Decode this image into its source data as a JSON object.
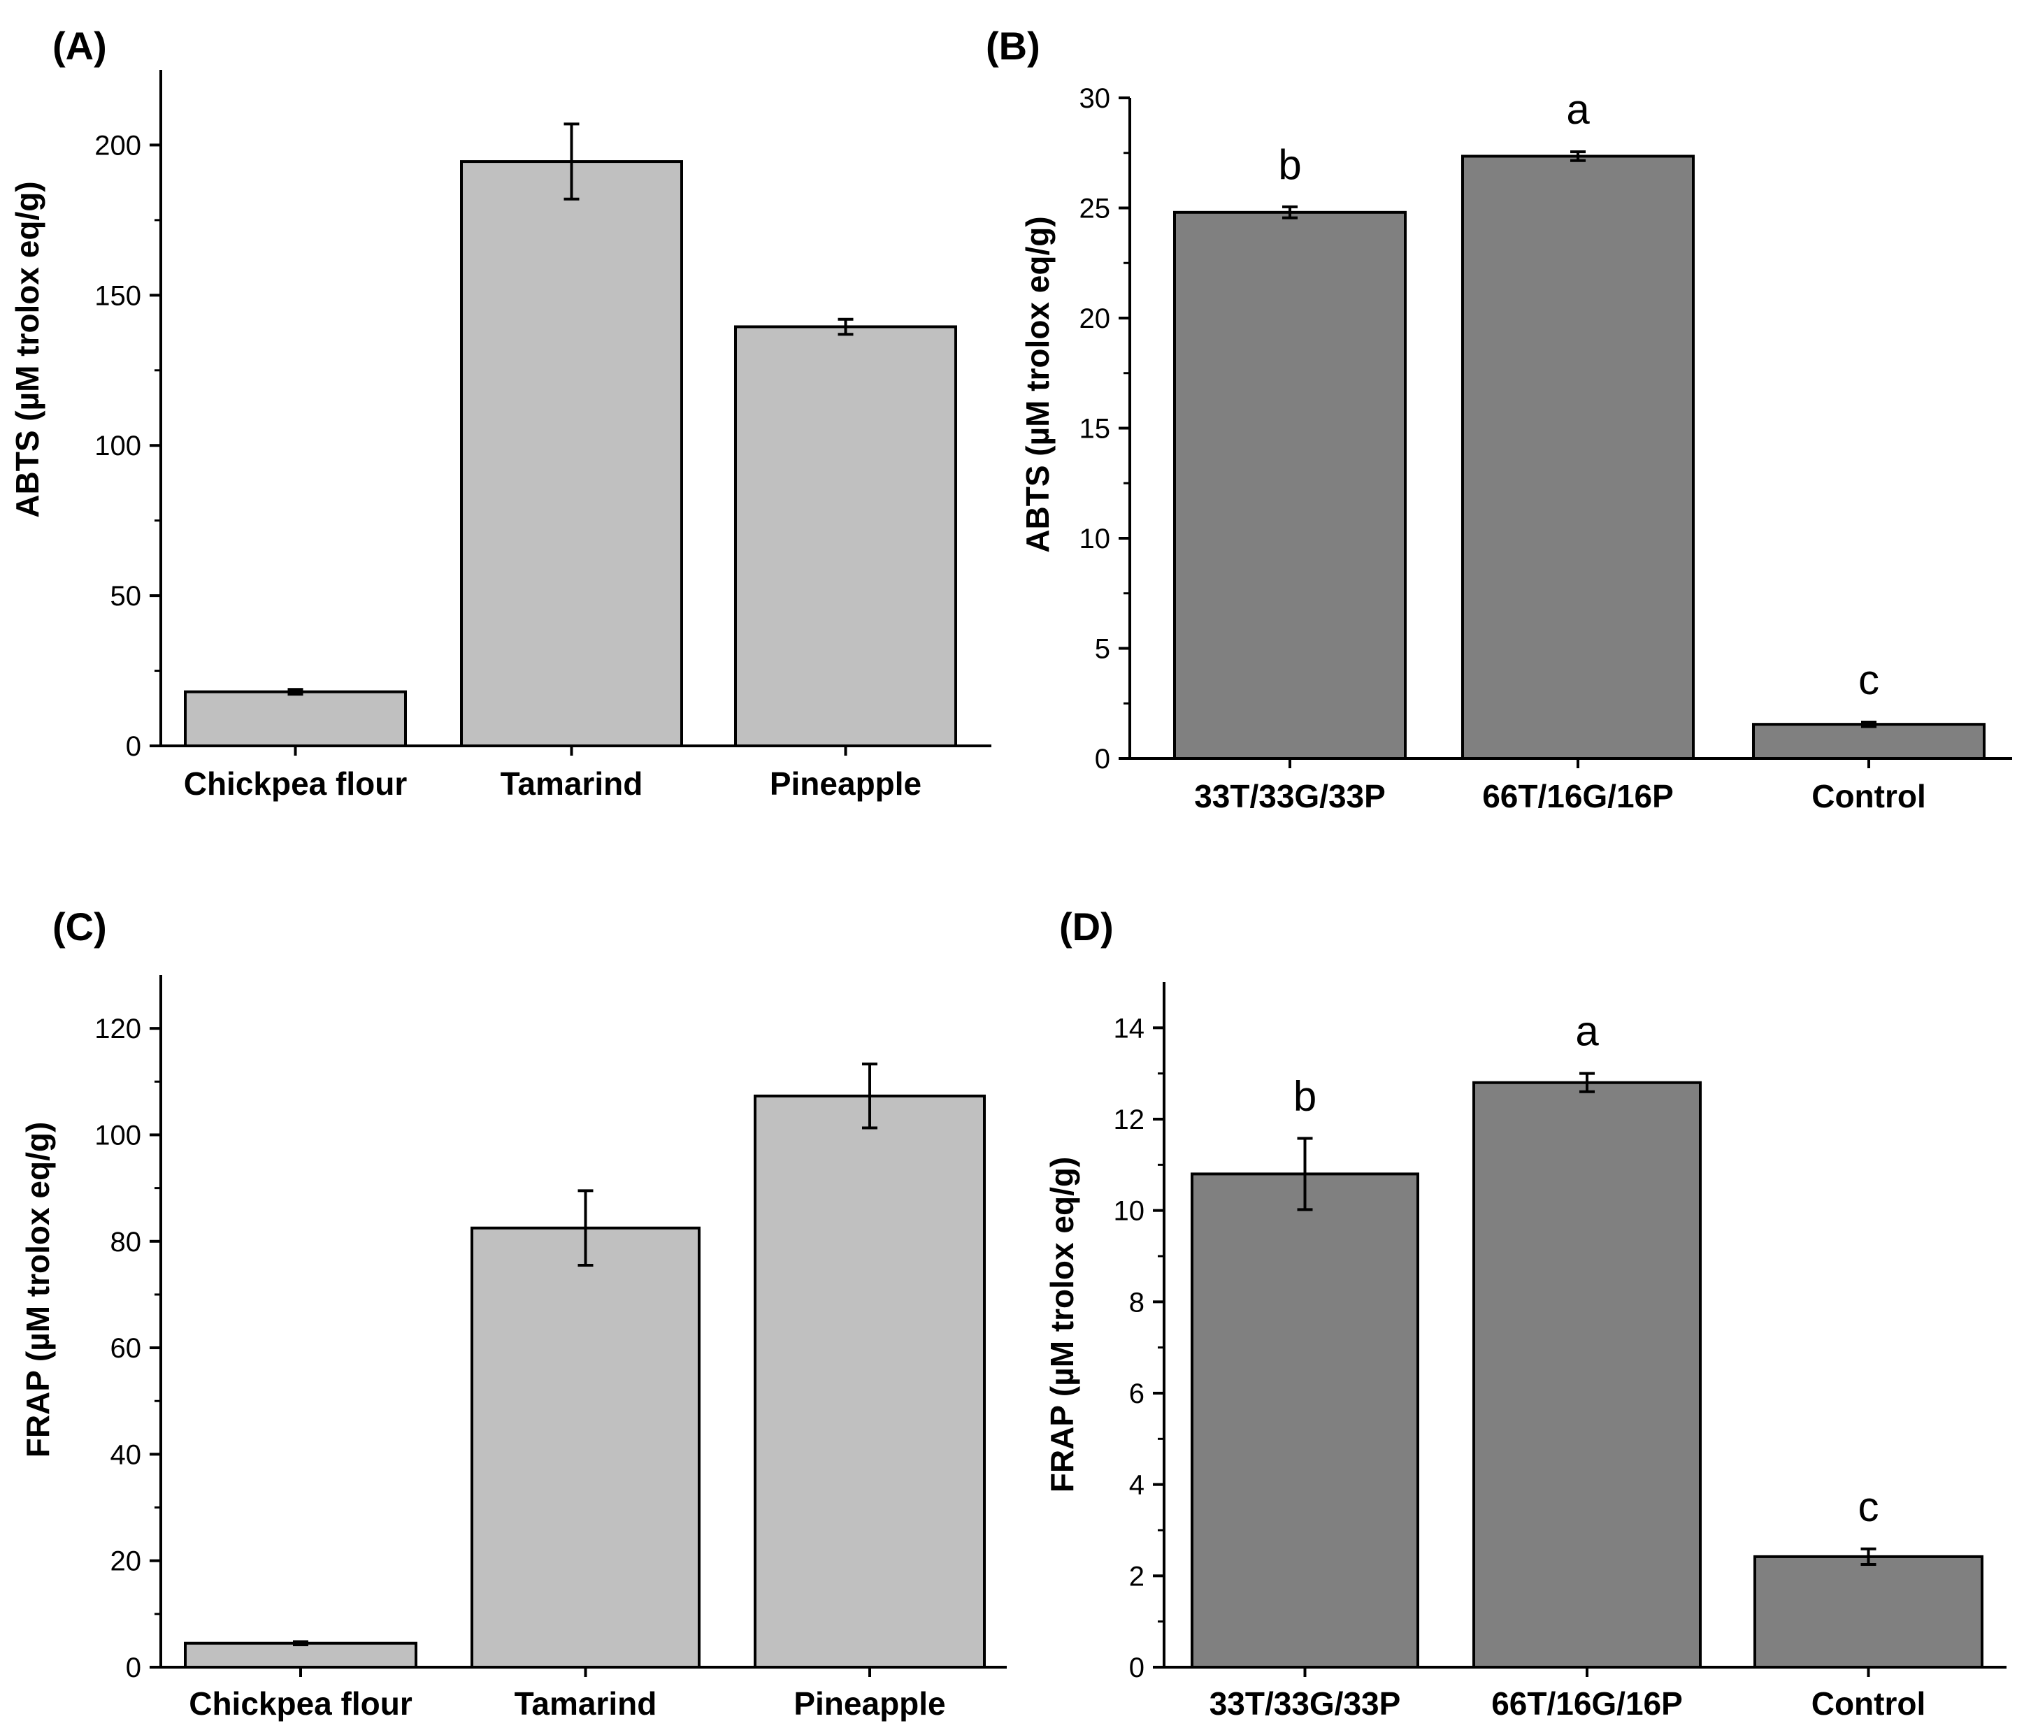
{
  "chart_data": [
    {
      "panel": "(A)",
      "type": "bar",
      "categories": [
        "Chickpea flour",
        "Tamarind",
        "Pineapple"
      ],
      "values": [
        18,
        194.5,
        139.5
      ],
      "errors": [
        0.8,
        12.5,
        2.5
      ],
      "ylabel": "ABTS (µM trolox eq/g)",
      "ylim": [
        0,
        225
      ],
      "yticks": [
        0,
        50,
        100,
        150,
        200
      ],
      "bar_color": "#c0c0c0",
      "significance": []
    },
    {
      "panel": "(B)",
      "type": "bar",
      "categories": [
        "33T/33G/33P",
        "66T/16G/16P",
        "Control"
      ],
      "values": [
        24.8,
        27.35,
        1.55
      ],
      "errors": [
        0.25,
        0.2,
        0.1
      ],
      "ylabel": "ABTS (µM trolox eq/g)",
      "ylim": [
        0,
        30
      ],
      "yticks": [
        0,
        5,
        10,
        15,
        20,
        25,
        30
      ],
      "bar_color": "#808080",
      "significance": [
        "b",
        "a",
        "c"
      ]
    },
    {
      "panel": "(C)",
      "type": "bar",
      "categories": [
        "Chickpea flour",
        "Tamarind",
        "Pineapple"
      ],
      "values": [
        4.5,
        82.5,
        107.3
      ],
      "errors": [
        0.3,
        7.0,
        6.0
      ],
      "ylabel": "FRAP (µM trolox eq/g)",
      "ylim": [
        0,
        130
      ],
      "yticks": [
        0,
        20,
        40,
        60,
        80,
        100,
        120
      ],
      "bar_color": "#c0c0c0",
      "significance": []
    },
    {
      "panel": "(D)",
      "type": "bar",
      "categories": [
        "33T/33G/33P",
        "66T/16G/16P",
        "Control"
      ],
      "values": [
        10.8,
        12.8,
        2.42
      ],
      "errors": [
        0.78,
        0.2,
        0.17
      ],
      "ylabel": "FRAP (µM trolox eq/g)",
      "ylim": [
        0,
        15
      ],
      "yticks": [
        0,
        2,
        4,
        6,
        8,
        10,
        12,
        14
      ],
      "bar_color": "#808080",
      "significance": [
        "b",
        "a",
        "c"
      ]
    }
  ]
}
